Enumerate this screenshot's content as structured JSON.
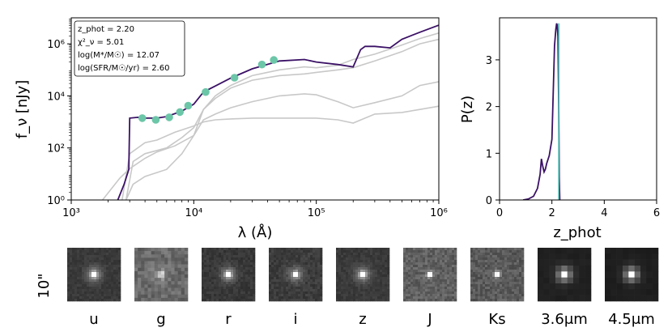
{
  "annotation": {
    "zphot": "z_phot = 2.20",
    "chi2": "χ²_ν = 5.01",
    "mass": "log(M*/M☉) = 12.07",
    "sfr": "log(SFR/M☉/yr) = 2.60"
  },
  "colors": {
    "best_fit": "#3b1166",
    "templates": "#c8c8c8",
    "photometry": "#6cc6a8",
    "pz_line": "#3b1166",
    "zphot_marker": "#4fb6b0"
  },
  "chart_data": [
    {
      "type": "line",
      "panel": "sed",
      "xlabel": "λ (Å)",
      "ylabel": "f_ν [nJy]",
      "xscale": "log",
      "yscale": "log",
      "xlim": [
        1000,
        1000000
      ],
      "ylim": [
        1,
        10000000
      ],
      "x_ticks": [
        "10³",
        "10⁴",
        "10⁵",
        "10⁶"
      ],
      "y_ticks": [
        "10⁰",
        "10²",
        "10⁴",
        "10⁶"
      ],
      "best_fit": {
        "x": [
          2400,
          2700,
          2950,
          3000,
          3500,
          4000,
          5000,
          6000,
          8000,
          10000,
          12000,
          15000,
          20000,
          30000,
          50000,
          80000,
          100000,
          150000,
          200000,
          230000,
          250000,
          300000,
          400000,
          500000,
          700000,
          1000000
        ],
        "y": [
          1,
          4,
          15,
          1400,
          1500,
          1400,
          1400,
          1600,
          2600,
          4800,
          14000,
          24000,
          48000,
          110000,
          220000,
          250000,
          200000,
          160000,
          130000,
          600000,
          800000,
          800000,
          700000,
          1500000,
          2800000,
          5200000
        ]
      },
      "templates": [
        {
          "x": [
            1800,
            2500,
            3000,
            4000,
            5000,
            7000,
            10000,
            12000,
            15000,
            20000,
            30000,
            50000,
            80000,
            100000,
            150000,
            200000,
            300000,
            500000,
            700000,
            1000000
          ],
          "y": [
            1,
            7,
            16,
            40,
            70,
            120,
            300,
            1200,
            2000,
            3500,
            6000,
            10000,
            12000,
            11000,
            6000,
            3500,
            5500,
            10000,
            25000,
            35000
          ]
        },
        {
          "x": [
            2600,
            3000,
            4000,
            5000,
            7000,
            10000,
            12000,
            15000,
            20000,
            30000,
            50000,
            80000,
            100000,
            150000,
            200000,
            300000,
            500000,
            700000,
            1000000
          ],
          "y": [
            1,
            60,
            160,
            200,
            400,
            700,
            1000,
            1200,
            1300,
            1400,
            1400,
            1400,
            1400,
            1200,
            900,
            2000,
            2300,
            3000,
            4000
          ]
        },
        {
          "x": [
            2800,
            3200,
            4000,
            6000,
            8000,
            10000,
            12000,
            15000,
            20000,
            30000,
            50000,
            80000,
            100000,
            150000,
            200000,
            300000,
            500000,
            700000,
            1000000
          ],
          "y": [
            1,
            4,
            8,
            15,
            60,
            300,
            3000,
            8000,
            20000,
            40000,
            60000,
            70000,
            80000,
            100000,
            120000,
            220000,
            500000,
            1000000,
            1500000
          ]
        },
        {
          "x": [
            2800,
            3200,
            4000,
            6000,
            8000,
            10000,
            12000,
            15000,
            20000,
            30000,
            50000,
            80000,
            100000,
            150000,
            200000,
            300000,
            500000,
            700000,
            1000000
          ],
          "y": [
            1,
            30,
            60,
            100,
            250,
            600,
            3000,
            10000,
            25000,
            60000,
            100000,
            130000,
            120000,
            150000,
            250000,
            400000,
            900000,
            1600000,
            2600000
          ]
        }
      ],
      "photometry": {
        "bands": [
          "u",
          "g",
          "r",
          "i",
          "z",
          "J",
          "Ks",
          "3.6μm",
          "4.5μm"
        ],
        "x": [
          3800,
          4900,
          6300,
          7700,
          9000,
          12500,
          21500,
          36000,
          45000
        ],
        "y": [
          1400,
          1200,
          1500,
          2400,
          4200,
          14000,
          50000,
          160000,
          240000
        ]
      }
    },
    {
      "type": "line",
      "panel": "pz",
      "xlabel": "z_phot",
      "ylabel": "P(z)",
      "xlim": [
        0,
        6
      ],
      "ylim": [
        0,
        3.9
      ],
      "x_ticks": [
        "0",
        "2",
        "4",
        "6"
      ],
      "y_ticks": [
        "0",
        "1",
        "2",
        "3"
      ],
      "zphot": 2.2,
      "x": [
        0.9,
        1.1,
        1.3,
        1.45,
        1.55,
        1.6,
        1.65,
        1.7,
        1.75,
        1.8,
        1.9,
        2.0,
        2.05,
        2.1,
        2.15,
        2.18,
        2.2,
        2.23,
        2.26,
        2.28,
        2.3
      ],
      "y": [
        0.0,
        0.02,
        0.08,
        0.25,
        0.55,
        0.88,
        0.72,
        0.6,
        0.66,
        0.78,
        0.95,
        1.3,
        2.3,
        3.3,
        3.65,
        3.78,
        3.75,
        3.5,
        2.0,
        0.5,
        0.0
      ]
    }
  ],
  "cutouts": {
    "size_label": "10\"",
    "bands": [
      "u",
      "g",
      "r",
      "i",
      "z",
      "J",
      "Ks",
      "3.6μm",
      "4.5μm"
    ]
  }
}
